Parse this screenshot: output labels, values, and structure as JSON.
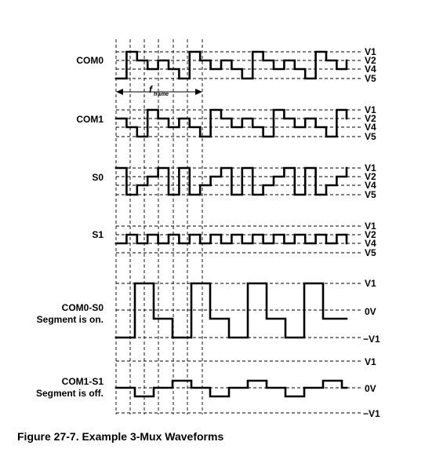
{
  "figure": {
    "caption": "Figure 27-7.  Example 3-Mux Waveforms",
    "frame_label": "f",
    "frame_label_sub": "frame"
  },
  "rows": [
    {
      "id": "com0",
      "label_lines": [
        "COM0"
      ],
      "levels": [
        "V1",
        "V2",
        "V4",
        "V5"
      ],
      "waveform": [
        "V5",
        "V1",
        "V2",
        "V4",
        "V2",
        "V4",
        "V5",
        "V1",
        "V2",
        "V4",
        "V2",
        "V4",
        "V5",
        "V1",
        "V2",
        "V4",
        "V2",
        "V4",
        "V5",
        "V1",
        "V2",
        "V4",
        "V2",
        "V4",
        "V2"
      ]
    },
    {
      "id": "com1",
      "label_lines": [
        "COM1"
      ],
      "levels": [
        "V1",
        "V2",
        "V4",
        "V5"
      ],
      "waveform": [
        "V2",
        "V4",
        "V5",
        "V1",
        "V2",
        "V4",
        "V2",
        "V4",
        "V5",
        "V1",
        "V2",
        "V4",
        "V2",
        "V4",
        "V5",
        "V1",
        "V2",
        "V4",
        "V2",
        "V4",
        "V5",
        "V1",
        "V2"
      ]
    },
    {
      "id": "s0",
      "label_lines": [
        "S0"
      ],
      "levels": [
        "V1",
        "V2",
        "V4",
        "V5"
      ],
      "waveform": [
        "V1",
        "V5",
        "V4",
        "V2",
        "V1",
        "V5",
        "V1",
        "V5",
        "V4",
        "V2",
        "V1",
        "V5",
        "V1",
        "V5",
        "V4",
        "V2",
        "V1",
        "V5",
        "V1",
        "V5",
        "V4",
        "V2",
        "V1"
      ]
    },
    {
      "id": "s1",
      "label_lines": [
        "S1"
      ],
      "levels": [
        "V1",
        "V2",
        "V4",
        "V5"
      ],
      "waveform": [
        "V4",
        "V2",
        "V4",
        "V2",
        "V4",
        "V2",
        "V4",
        "V2",
        "V4",
        "V2",
        "V4",
        "V2",
        "V4",
        "V2",
        "V4",
        "V2",
        "V4",
        "V2",
        "V4",
        "V2",
        "V4",
        "V2",
        "V4"
      ]
    },
    {
      "id": "com0-s0",
      "label_lines": [
        "COM0-S0",
        "Segment is on."
      ],
      "levels": [
        "V1",
        "0V",
        "−V1"
      ],
      "waveform": [
        "-V1",
        "V1",
        "0V",
        "-V1",
        "V1",
        "0V",
        "-V1",
        "V1",
        "0V",
        "-V1",
        "V1",
        "0V",
        "0V"
      ]
    },
    {
      "id": "com1-s1",
      "label_lines": [
        "COM1-S1",
        "Segment is off."
      ],
      "levels": [
        "V1",
        "0V",
        "−V1"
      ],
      "waveform": [
        "0V",
        "-low",
        "0V",
        "high",
        "0V",
        "-low",
        "0V",
        "high",
        "0V",
        "-low",
        "0V",
        "high",
        "0V"
      ]
    }
  ]
}
